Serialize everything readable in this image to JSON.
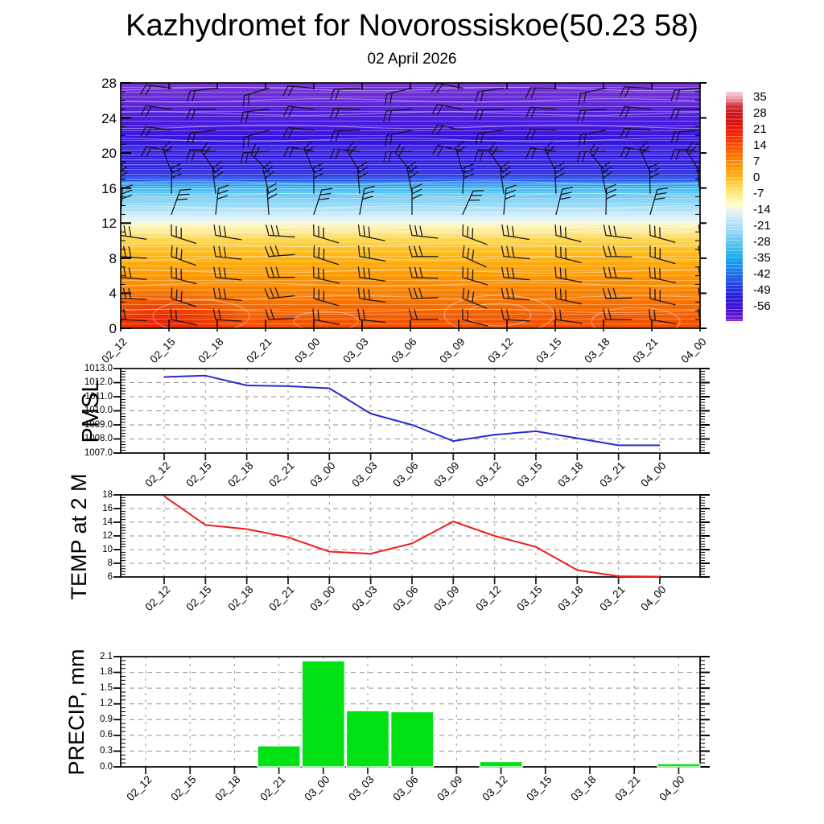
{
  "header": {
    "title": "Kazhydromet for Novorossiskoe(50.23 58)",
    "subtitle": "02 April 2026"
  },
  "time_labels": [
    "02_12",
    "02_15",
    "02_18",
    "02_21",
    "03_00",
    "03_03",
    "03_06",
    "03_09",
    "03_12",
    "03_15",
    "03_18",
    "03_21",
    "04_00"
  ],
  "colors": {
    "pmsl_line": "#2a2ad2",
    "temp_line": "#ee1c1c",
    "precip_bar": "#00e213",
    "grid_dash": "#909090",
    "frame": "#000000",
    "barb": "#14141c"
  },
  "chart_data": [
    {
      "type": "heatmap",
      "name": "temperature-wind-cross-section",
      "ylim": [
        0,
        28
      ],
      "ytick_labels": [
        "0",
        "4",
        "8",
        "12",
        "16",
        "20",
        "24",
        "28"
      ],
      "x_categories": [
        "02_12",
        "02_15",
        "02_18",
        "02_21",
        "03_00",
        "03_03",
        "03_06",
        "03_09",
        "03_12",
        "03_15",
        "03_18",
        "03_21",
        "04_00"
      ],
      "colorbar_tick_labels": [
        "35",
        "28",
        "21",
        "14",
        "7",
        "0",
        "-7",
        "-14",
        "-21",
        "-28",
        "-35",
        "-42",
        "-49",
        "-56"
      ],
      "colorbar_gradient": [
        [
          0,
          "#f7ccd4"
        ],
        [
          3,
          "#eb9aa4"
        ],
        [
          6,
          "#d4303a"
        ],
        [
          10,
          "#c81016"
        ],
        [
          16,
          "#e81604"
        ],
        [
          23,
          "#fb4a02"
        ],
        [
          30,
          "#fd8404"
        ],
        [
          37,
          "#fdb216"
        ],
        [
          43,
          "#fde369"
        ],
        [
          49,
          "#fffdc4"
        ],
        [
          52,
          "#e8f4ee"
        ],
        [
          55,
          "#c9e9f9"
        ],
        [
          61,
          "#93d8f5"
        ],
        [
          67,
          "#4ec0ef"
        ],
        [
          73,
          "#14a6ec"
        ],
        [
          79,
          "#1d74e8"
        ],
        [
          85,
          "#2439e2"
        ],
        [
          90,
          "#2a16dc"
        ],
        [
          95,
          "#4410d2"
        ],
        [
          100,
          "#7c1ed6"
        ]
      ],
      "field_gradient": [
        [
          0,
          "#7a38d6"
        ],
        [
          7,
          "#642ada"
        ],
        [
          14,
          "#501ede"
        ],
        [
          21,
          "#3c16e0"
        ],
        [
          27,
          "#2e14e2"
        ],
        [
          33,
          "#2817e4"
        ],
        [
          37,
          "#2326e6"
        ],
        [
          39.5,
          "#1e4fe8"
        ],
        [
          42,
          "#2fb0ed"
        ],
        [
          46,
          "#66c9f2"
        ],
        [
          50,
          "#93d8f5"
        ],
        [
          54,
          "#cdecfa"
        ],
        [
          56.5,
          "#eef7f0"
        ],
        [
          58,
          "#fdf6c4"
        ],
        [
          61,
          "#fde88c"
        ],
        [
          64,
          "#fdd64e"
        ],
        [
          68,
          "#fdc22a"
        ],
        [
          72,
          "#fdb012"
        ],
        [
          78,
          "#fd9c06"
        ],
        [
          86,
          "#f98002"
        ],
        [
          93,
          "#f56402"
        ],
        [
          100,
          "#f14c02"
        ]
      ],
      "wind_barbs": {
        "rows": [
          {
            "y": 1.0,
            "angle": -6,
            "feathers": 2,
            "rel": 105,
            "attach": "start"
          },
          {
            "y": 3.4,
            "angle": -8,
            "feathers": 3,
            "rel": 105,
            "attach": "start"
          },
          {
            "y": 5.8,
            "angle": -8,
            "feathers": 3,
            "rel": 105,
            "attach": "start"
          },
          {
            "y": 8.2,
            "angle": -10,
            "feathers": 3,
            "rel": 106,
            "attach": "start"
          },
          {
            "y": 10.6,
            "angle": -12,
            "feathers": 3,
            "rel": 108,
            "attach": "start"
          },
          {
            "y": 13.0,
            "angle": 80,
            "feathers": 3,
            "rel": -65,
            "attach": "end"
          },
          {
            "y": 15.4,
            "angle": 95,
            "feathers": 3,
            "rel": -65,
            "attach": "end"
          },
          {
            "y": 17.8,
            "angle": 120,
            "feathers": 2,
            "rel": -70,
            "attach": "end"
          },
          {
            "y": 20.2,
            "angle": 175,
            "feathers": 2,
            "rel": 75,
            "attach": "end"
          },
          {
            "y": 22.6,
            "angle": 182,
            "feathers": 2,
            "rel": 70,
            "attach": "end"
          },
          {
            "y": 25.0,
            "angle": 178,
            "feathers": 2,
            "rel": 72,
            "attach": "end"
          },
          {
            "y": 27.4,
            "angle": 183,
            "feathers": 2,
            "rel": 68,
            "attach": "end"
          }
        ],
        "col_angle_jitter": [
          6,
          -10,
          4,
          14,
          -8,
          0,
          10,
          -14,
          5,
          -4,
          9,
          -6,
          2
        ],
        "col_x_jitter": [
          0,
          3,
          -2,
          4,
          0,
          -3,
          2,
          5,
          -4,
          1,
          3,
          -2,
          0
        ]
      }
    },
    {
      "type": "line",
      "ylabel": "PMSL",
      "ylim": [
        1007.0,
        1013.0
      ],
      "ytick_step": 1.0,
      "ytick_labels": [
        "1007.0",
        "1008.0",
        "1009.0",
        "1010.0",
        "1011.0",
        "1012.0",
        "1013.0"
      ],
      "x": [
        "02_12",
        "02_15",
        "02_18",
        "02_21",
        "03_00",
        "03_03",
        "03_06",
        "03_09",
        "03_12",
        "03_15",
        "03_18",
        "03_21",
        "04_00"
      ],
      "values": [
        1012.4,
        1012.5,
        1011.8,
        1011.75,
        1011.6,
        1009.8,
        1009.0,
        1007.85,
        1008.3,
        1008.55,
        1008.05,
        1007.55,
        1007.55
      ]
    },
    {
      "type": "line",
      "ylabel": "TEMP at 2 M",
      "ylim": [
        6,
        18
      ],
      "ytick_step": 2,
      "ytick_labels": [
        "6",
        "8",
        "10",
        "12",
        "14",
        "16",
        "18"
      ],
      "x": [
        "02_12",
        "02_15",
        "02_18",
        "02_21",
        "03_00",
        "03_03",
        "03_06",
        "03_09",
        "03_12",
        "03_15",
        "03_18",
        "03_21",
        "04_00"
      ],
      "values": [
        17.8,
        13.6,
        13.0,
        11.8,
        9.7,
        9.4,
        10.9,
        14.1,
        12.0,
        10.4,
        7.0,
        6.1,
        6.05
      ]
    },
    {
      "type": "bar",
      "ylabel": "PRECIP, mm",
      "ylim": [
        0.0,
        2.1
      ],
      "ytick_step": 0.3,
      "ytick_labels": [
        "0.0",
        "0.3",
        "0.6",
        "0.9",
        "1.2",
        "1.5",
        "1.8",
        "2.1"
      ],
      "x": [
        "02_12",
        "02_15",
        "02_18",
        "02_21",
        "03_00",
        "03_03",
        "03_06",
        "03_09",
        "03_12",
        "03_15",
        "03_18",
        "03_21",
        "04_00"
      ],
      "values": [
        0,
        0,
        0,
        0.4,
        2.02,
        1.07,
        1.05,
        0,
        0.1,
        0,
        0,
        0,
        0.06
      ]
    }
  ]
}
